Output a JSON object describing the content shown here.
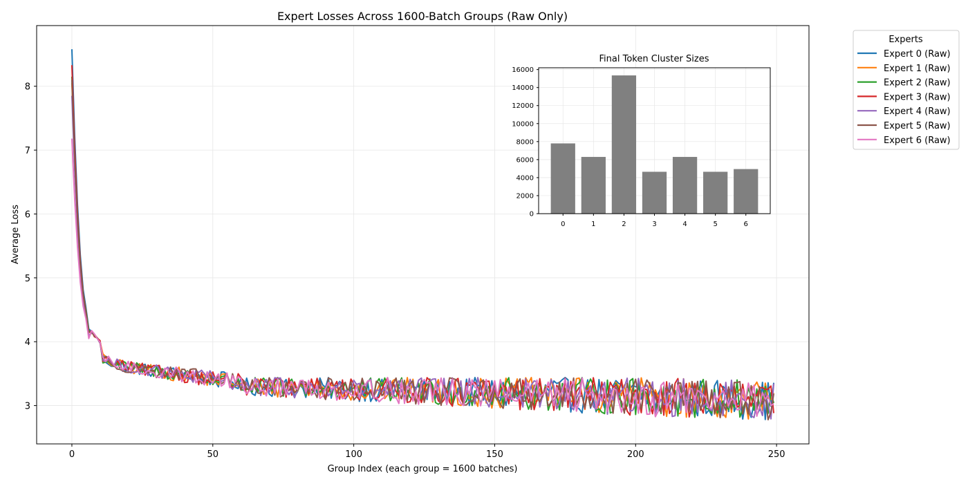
{
  "chart_data": [
    {
      "type": "line",
      "title": "Expert Losses Across 1600-Batch Groups (Raw Only)",
      "xlabel": "Group Index (each group = 1600 batches)",
      "ylabel": "Average Loss",
      "xlim": [
        -12.5,
        261.5
      ],
      "ylim": [
        2.4,
        8.95
      ],
      "xticks": [
        0,
        50,
        100,
        150,
        200,
        250
      ],
      "yticks": [
        3,
        4,
        5,
        6,
        7,
        8
      ],
      "grid": true,
      "legend": {
        "title": "Experts",
        "placement": "outside-right"
      },
      "n_points": 250,
      "series": [
        {
          "name": "Expert 0 (Raw)",
          "color": "#1f77b4",
          "start": 8.58,
          "early": 4.45
        },
        {
          "name": "Expert 1 (Raw)",
          "color": "#ff7f0e",
          "start": 8.05,
          "early": 4.4
        },
        {
          "name": "Expert 2 (Raw)",
          "color": "#2ca02c",
          "start": 8.15,
          "early": 4.42
        },
        {
          "name": "Expert 3 (Raw)",
          "color": "#d62728",
          "start": 8.33,
          "early": 4.4
        },
        {
          "name": "Expert 4 (Raw)",
          "color": "#9467bd",
          "start": 7.85,
          "early": 4.35
        },
        {
          "name": "Expert 5 (Raw)",
          "color": "#8c564b",
          "start": 8.1,
          "early": 4.4
        },
        {
          "name": "Expert 6 (Raw)",
          "color": "#e377c2",
          "start": 7.18,
          "early": 4.3
        }
      ]
    },
    {
      "type": "bar",
      "title": "Final Token Cluster Sizes",
      "categories": [
        "0",
        "1",
        "2",
        "3",
        "4",
        "5",
        "6"
      ],
      "values": [
        7800,
        6300,
        15350,
        4650,
        6300,
        4650,
        4950
      ],
      "ylim": [
        0,
        16200
      ],
      "yticks": [
        0,
        2000,
        4000,
        6000,
        8000,
        10000,
        12000,
        14000,
        16000
      ],
      "color": "#808080",
      "grid": true
    }
  ]
}
